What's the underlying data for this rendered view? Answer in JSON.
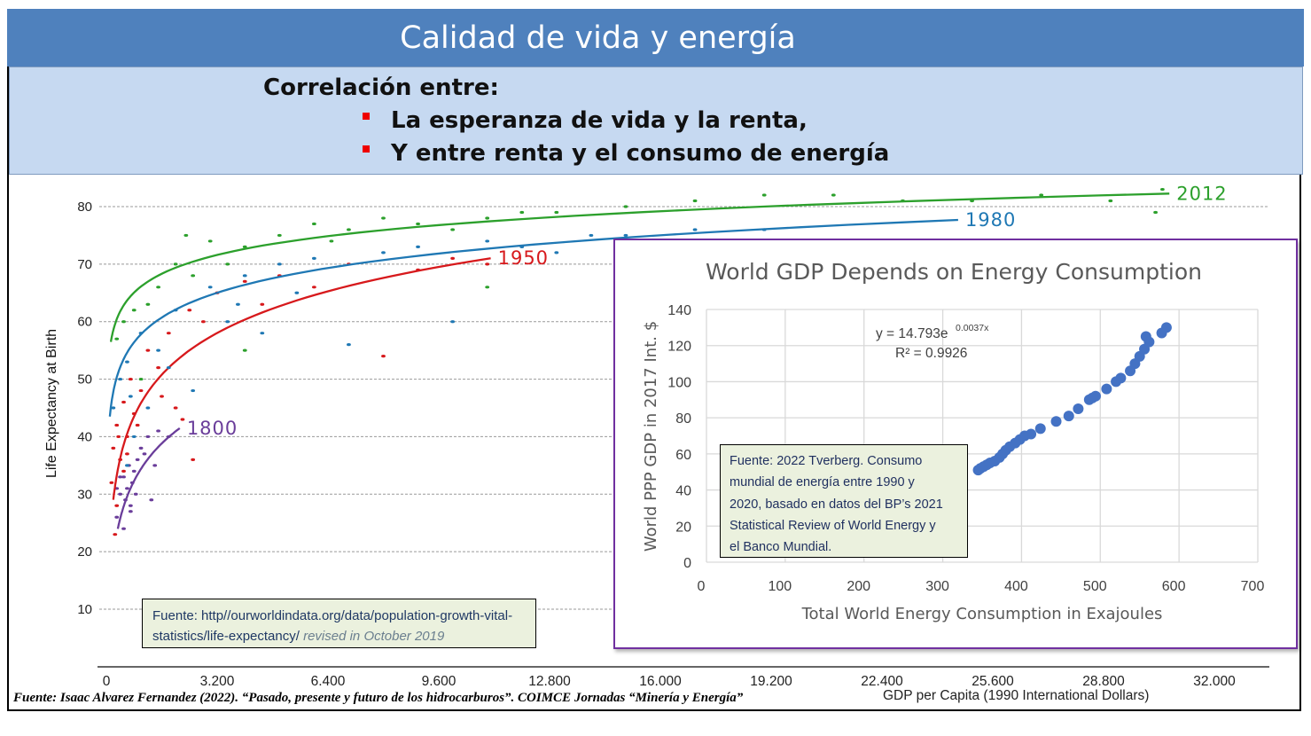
{
  "slide": {
    "title": "Calidad de vida y energía",
    "lead": "Correlación entre:",
    "bullets": [
      "La esperanza de vida y la renta,",
      "Y entre renta y el consumo  de energía"
    ],
    "bullet_color": "#ee0000",
    "footer": "Fuente: Isaac Alvarez Fernandez (2022). “Pasado, presente y futuro de los hidrocarburos”. COIMCE Jornadas “Minería y Energía”"
  },
  "chart_data": [
    {
      "type": "scatter",
      "title": "",
      "xlabel": "GDP per Capita (1990 International Dollars)",
      "ylabel": "Life Expectancy at Birth",
      "xlim": [
        0,
        32000
      ],
      "ylim": [
        0,
        84
      ],
      "xticks": [
        "0",
        "3.200",
        "6.400",
        "9.600",
        "12.800",
        "16.000",
        "19.200",
        "22.400",
        "25.600",
        "28.800",
        "32.000"
      ],
      "yticks": [
        10,
        20,
        30,
        40,
        50,
        60,
        70,
        80
      ],
      "grid": "horizontal dashed",
      "source_note": {
        "text": "Fuente: http//ourworldindata.org/data/population-growth-vital-statistics/life-expectancy/",
        "text2": "revised in October 2019"
      },
      "series": [
        {
          "name": "1800",
          "color": "#6a3d9a",
          "trend": {
            "a": -30.6,
            "b": 9.41,
            "x": [
              330,
              2120
            ]
          },
          "points": [
            [
              300,
              26
            ],
            [
              400,
              30
            ],
            [
              500,
              33
            ],
            [
              600,
              31
            ],
            [
              700,
              28
            ],
            [
              800,
              34
            ],
            [
              900,
              36
            ],
            [
              1000,
              38
            ],
            [
              1200,
              40
            ],
            [
              1500,
              41
            ],
            [
              1800,
              40
            ],
            [
              400,
              33
            ],
            [
              550,
              29
            ],
            [
              650,
              35
            ],
            [
              750,
              32
            ],
            [
              850,
              30
            ],
            [
              1100,
              37
            ],
            [
              300,
              31
            ],
            [
              1300,
              29
            ],
            [
              1400,
              35
            ],
            [
              500,
              24
            ],
            [
              700,
              27
            ]
          ]
        },
        {
          "name": "1950",
          "color": "#d7191c",
          "trend": {
            "a": -26.4,
            "b": 10.46,
            "x": [
              200,
              11100
            ]
          },
          "points": [
            [
              200,
              38
            ],
            [
              300,
              42
            ],
            [
              400,
              36
            ],
            [
              500,
              46
            ],
            [
              600,
              40
            ],
            [
              700,
              50
            ],
            [
              800,
              44
            ],
            [
              1000,
              48
            ],
            [
              1200,
              55
            ],
            [
              1500,
              52
            ],
            [
              1800,
              58
            ],
            [
              2000,
              45
            ],
            [
              2400,
              62
            ],
            [
              2800,
              60
            ],
            [
              3200,
              65
            ],
            [
              4000,
              67
            ],
            [
              4500,
              63
            ],
            [
              5000,
              68
            ],
            [
              6000,
              66
            ],
            [
              7000,
              70
            ],
            [
              8000,
              54
            ],
            [
              9000,
              69
            ],
            [
              10000,
              71
            ],
            [
              300,
              28
            ],
            [
              500,
              34
            ],
            [
              2500,
              36
            ],
            [
              11000,
              70
            ],
            [
              250,
              23
            ],
            [
              150,
              32
            ],
            [
              350,
              40
            ],
            [
              600,
              37
            ],
            [
              900,
              42
            ],
            [
              1600,
              47
            ],
            [
              2200,
              43
            ]
          ]
        },
        {
          "name": "1980",
          "color": "#1f78b4",
          "trend": {
            "a": 14.9,
            "b": 6.21,
            "x": [
              100,
              24600
            ]
          },
          "points": [
            [
              200,
              45
            ],
            [
              400,
              50
            ],
            [
              600,
              53
            ],
            [
              800,
              40
            ],
            [
              1000,
              58
            ],
            [
              1500,
              55
            ],
            [
              2000,
              62
            ],
            [
              2500,
              48
            ],
            [
              3000,
              66
            ],
            [
              3500,
              60
            ],
            [
              4000,
              68
            ],
            [
              4500,
              58
            ],
            [
              5000,
              70
            ],
            [
              6000,
              71
            ],
            [
              7000,
              56
            ],
            [
              8000,
              72
            ],
            [
              9000,
              73
            ],
            [
              10000,
              60
            ],
            [
              11000,
              74
            ],
            [
              12000,
              73
            ],
            [
              13000,
              72
            ],
            [
              14000,
              75
            ],
            [
              15000,
              75
            ],
            [
              17000,
              76
            ],
            [
              19000,
              76
            ],
            [
              600,
              35
            ],
            [
              1200,
              45
            ],
            [
              700,
              47
            ],
            [
              1800,
              52
            ],
            [
              3800,
              63
            ],
            [
              5500,
              65
            ]
          ]
        },
        {
          "name": "2012",
          "color": "#2ca02c",
          "trend": {
            "a": 33.5,
            "b": 4.72,
            "x": [
              130,
              30700
            ]
          },
          "points": [
            [
              300,
              57
            ],
            [
              500,
              60
            ],
            [
              800,
              62
            ],
            [
              1000,
              50
            ],
            [
              1500,
              66
            ],
            [
              2000,
              70
            ],
            [
              2500,
              68
            ],
            [
              3000,
              74
            ],
            [
              4000,
              73
            ],
            [
              5000,
              75
            ],
            [
              6000,
              77
            ],
            [
              7000,
              76
            ],
            [
              8000,
              78
            ],
            [
              9000,
              77
            ],
            [
              10000,
              76
            ],
            [
              11000,
              78
            ],
            [
              12000,
              79
            ],
            [
              13000,
              79
            ],
            [
              15000,
              80
            ],
            [
              17000,
              81
            ],
            [
              19000,
              82
            ],
            [
              21000,
              82
            ],
            [
              23000,
              81
            ],
            [
              25000,
              81
            ],
            [
              27000,
              82
            ],
            [
              29000,
              81
            ],
            [
              30500,
              83
            ],
            [
              30300,
              79
            ],
            [
              11000,
              66
            ],
            [
              4000,
              55
            ],
            [
              1200,
              63
            ],
            [
              2300,
              75
            ],
            [
              3500,
              70
            ],
            [
              6500,
              74
            ]
          ]
        }
      ]
    },
    {
      "type": "scatter",
      "title": "World GDP Depends on Energy Consumption",
      "xlabel": "Total World Energy Consumption in Exajoules",
      "ylabel": "World PPP GDP in 2017 Int. $",
      "xlim": [
        0,
        700
      ],
      "ylim": [
        0,
        140
      ],
      "xticks": [
        0,
        100,
        200,
        300,
        400,
        500,
        600,
        700
      ],
      "yticks": [
        0,
        20,
        40,
        60,
        80,
        100,
        120,
        140
      ],
      "grid": "both",
      "color": "#4472c4",
      "equation": {
        "lhs": "y = 14.793e",
        "exp": "0.0037x",
        "r2": "R² = 0.9926"
      },
      "source_note": [
        "Fuente: 2022 Tverberg. Consumo",
        "mundial de energía entre 1990 y",
        "2020, basado en datos del  BP’s 2021",
        "Statistical Review of World Energy y",
        "el Banco Mundial."
      ],
      "points": [
        [
          345,
          51
        ],
        [
          348,
          52
        ],
        [
          352,
          53
        ],
        [
          356,
          54
        ],
        [
          360,
          55
        ],
        [
          366,
          56
        ],
        [
          372,
          58
        ],
        [
          376,
          60
        ],
        [
          380,
          62
        ],
        [
          385,
          64
        ],
        [
          392,
          66
        ],
        [
          398,
          68
        ],
        [
          404,
          70
        ],
        [
          412,
          71
        ],
        [
          424,
          74
        ],
        [
          444,
          78
        ],
        [
          460,
          81
        ],
        [
          472,
          85
        ],
        [
          486,
          90
        ],
        [
          490,
          91
        ],
        [
          494,
          92
        ],
        [
          508,
          96
        ],
        [
          520,
          100
        ],
        [
          526,
          102
        ],
        [
          538,
          106
        ],
        [
          544,
          110
        ],
        [
          550,
          114
        ],
        [
          556,
          118
        ],
        [
          558,
          125
        ],
        [
          562,
          122
        ],
        [
          578,
          127
        ],
        [
          584,
          130
        ]
      ]
    }
  ]
}
